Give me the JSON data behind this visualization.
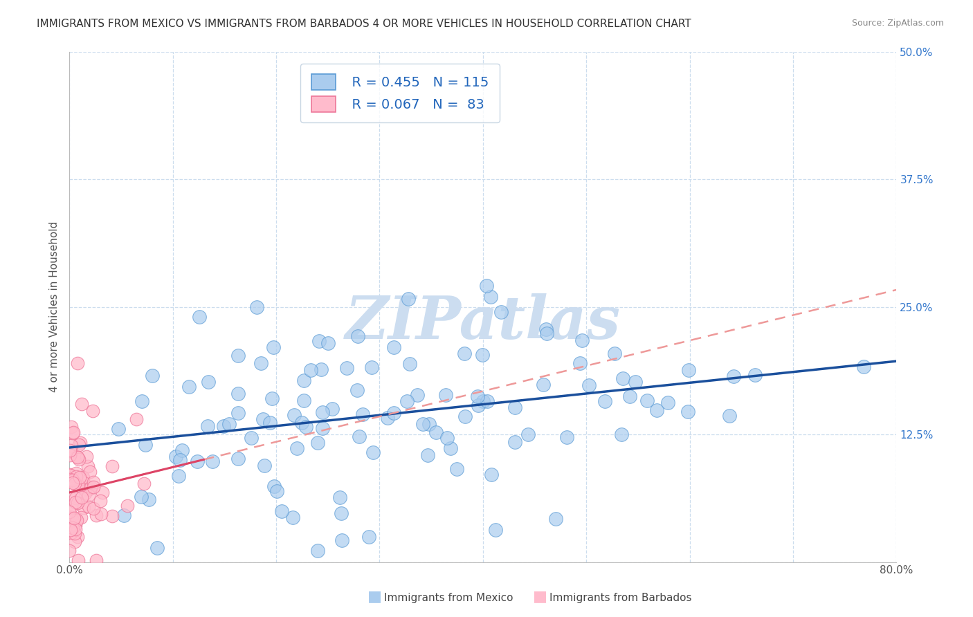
{
  "title": "IMMIGRANTS FROM MEXICO VS IMMIGRANTS FROM BARBADOS 4 OR MORE VEHICLES IN HOUSEHOLD CORRELATION CHART",
  "source": "Source: ZipAtlas.com",
  "ylabel": "4 or more Vehicles in Household",
  "xlim": [
    0.0,
    0.8
  ],
  "ylim": [
    0.0,
    0.5
  ],
  "xticks": [
    0.0,
    0.1,
    0.2,
    0.3,
    0.4,
    0.5,
    0.6,
    0.7,
    0.8
  ],
  "yticks": [
    0.0,
    0.125,
    0.25,
    0.375,
    0.5
  ],
  "mexico_color": "#aaccee",
  "mexico_edge": "#5b9bd5",
  "barbados_color": "#ffbbcc",
  "barbados_edge": "#ee7799",
  "trendline_mexico_color": "#1a4f9c",
  "trendline_barbados_solid_color": "#dd4466",
  "trendline_barbados_dash_color": "#ee9999",
  "legend_label_mexico": "Immigrants from Mexico",
  "legend_label_barbados": "Immigrants from Barbados",
  "legend_R_mexico": "R = 0.455",
  "legend_N_mexico": "N = 115",
  "legend_R_barbados": "R = 0.067",
  "legend_N_barbados": "N =  83",
  "watermark": "ZIPatlas",
  "watermark_color": "#ccddf0",
  "background_color": "#ffffff",
  "grid_color": "#ccddee",
  "mexico_seed": 42,
  "barbados_seed": 99,
  "mexico_N": 115,
  "mexico_R": 0.455,
  "barbados_N": 83,
  "barbados_R": 0.067
}
